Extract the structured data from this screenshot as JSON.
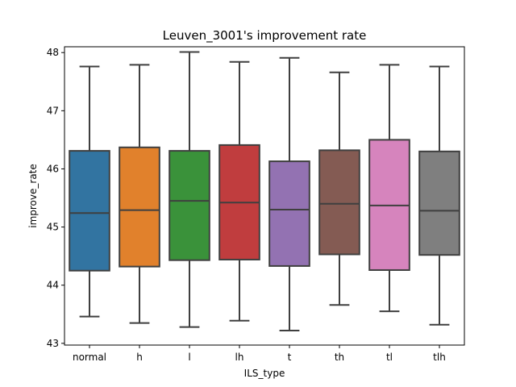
{
  "chart_data": {
    "type": "box",
    "title": "Leuven_3001's improvement rate",
    "xlabel": "ILS_type",
    "ylabel": "improve_rate",
    "ylim": [
      42.97,
      48.1
    ],
    "yticks": [
      43,
      44,
      45,
      46,
      47,
      48
    ],
    "grid": false,
    "legend": "none",
    "categories": [
      "normal",
      "h",
      "l",
      "lh",
      "t",
      "th",
      "tl",
      "tlh"
    ],
    "colors": [
      "#3274a1",
      "#e1812c",
      "#3a923a",
      "#c03d3e",
      "#9372b2",
      "#845b53",
      "#d684bd",
      "#7f7f7f"
    ],
    "boxes": [
      {
        "min": 43.46,
        "q1": 44.25,
        "median": 45.24,
        "q3": 46.31,
        "max": 47.76
      },
      {
        "min": 43.35,
        "q1": 44.32,
        "median": 45.29,
        "q3": 46.37,
        "max": 47.79
      },
      {
        "min": 43.28,
        "q1": 44.43,
        "median": 45.45,
        "q3": 46.31,
        "max": 48.01
      },
      {
        "min": 43.39,
        "q1": 44.44,
        "median": 45.42,
        "q3": 46.41,
        "max": 47.84
      },
      {
        "min": 43.22,
        "q1": 44.33,
        "median": 45.3,
        "q3": 46.13,
        "max": 47.91
      },
      {
        "min": 43.66,
        "q1": 44.53,
        "median": 45.4,
        "q3": 46.32,
        "max": 47.66
      },
      {
        "min": 43.55,
        "q1": 44.26,
        "median": 45.37,
        "q3": 46.5,
        "max": 47.79
      },
      {
        "min": 43.32,
        "q1": 44.52,
        "median": 45.28,
        "q3": 46.3,
        "max": 47.76
      }
    ]
  }
}
